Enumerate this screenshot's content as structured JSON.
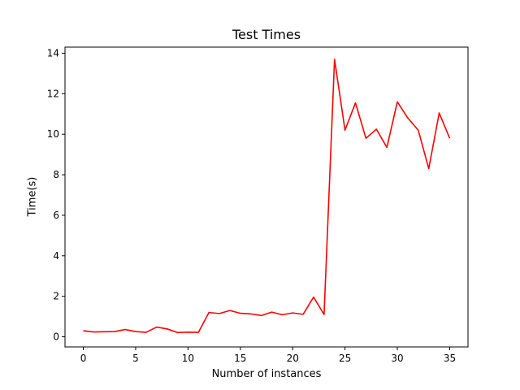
{
  "chart_data": {
    "type": "line",
    "title": "Test Times",
    "xlabel": "Number of instances",
    "ylabel": "Time(s)",
    "xlim": [
      -1.75,
      36.75
    ],
    "ylim": [
      -0.5,
      14.3
    ],
    "xticks": [
      0,
      5,
      10,
      15,
      20,
      25,
      30,
      35
    ],
    "yticks": [
      0,
      2,
      4,
      6,
      8,
      10,
      12,
      14
    ],
    "grid": false,
    "series": [
      {
        "color": "#ff0000",
        "x": [
          0,
          1,
          2,
          3,
          4,
          5,
          6,
          7,
          8,
          9,
          10,
          11,
          12,
          13,
          14,
          15,
          16,
          17,
          18,
          19,
          20,
          21,
          22,
          23,
          24,
          25,
          26,
          27,
          28,
          29,
          30,
          31,
          32,
          33,
          34,
          35
        ],
        "y": [
          0.3,
          0.24,
          0.25,
          0.26,
          0.36,
          0.26,
          0.22,
          0.48,
          0.39,
          0.21,
          0.23,
          0.22,
          1.2,
          1.15,
          1.3,
          1.16,
          1.13,
          1.05,
          1.22,
          1.09,
          1.18,
          1.11,
          1.96,
          1.1,
          13.7,
          10.2,
          11.55,
          9.8,
          10.25,
          9.35,
          11.6,
          10.8,
          10.2,
          8.3,
          11.05,
          9.8
        ]
      }
    ]
  }
}
